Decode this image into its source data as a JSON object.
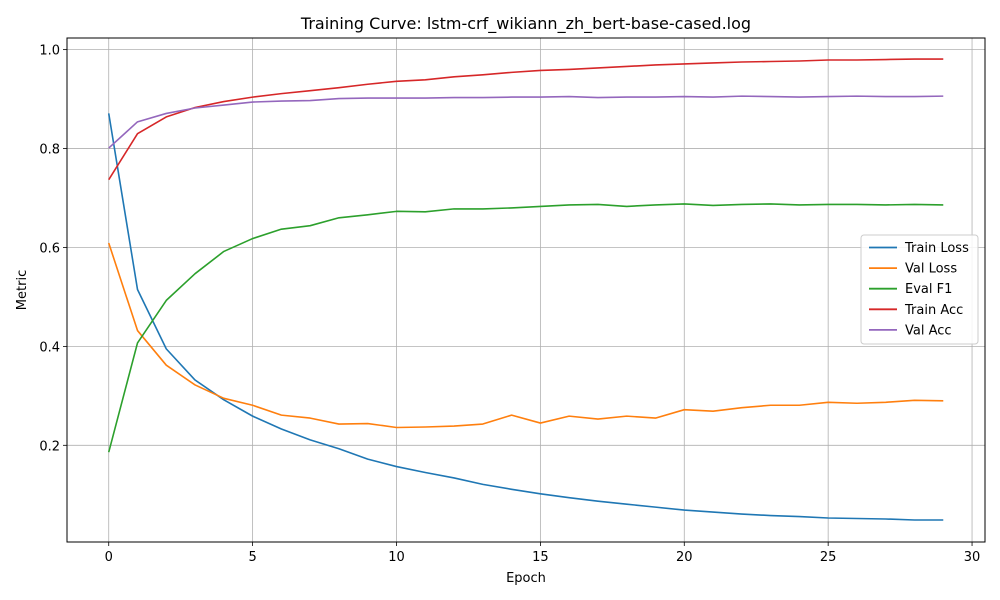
{
  "chart_data": {
    "type": "line",
    "title": "Training Curve: lstm-crf_wikiann_zh_bert-base-cased.log",
    "xlabel": "Epoch",
    "ylabel": "Metric",
    "xlim": [
      -1.45,
      30.45
    ],
    "ylim": [
      0.0045,
      1.0235
    ],
    "xticks": [
      0,
      5,
      10,
      15,
      20,
      25,
      30
    ],
    "xtick_labels": [
      "0",
      "5",
      "10",
      "15",
      "20",
      "25",
      "30"
    ],
    "yticks": [
      0.2,
      0.4,
      0.6,
      0.8,
      1.0
    ],
    "ytick_labels": [
      "0.2",
      "0.4",
      "0.6",
      "0.8",
      "1.0"
    ],
    "grid": true,
    "legend_position": "center-right",
    "x": [
      0,
      1,
      2,
      3,
      4,
      5,
      6,
      7,
      8,
      9,
      10,
      11,
      12,
      13,
      14,
      15,
      16,
      17,
      18,
      19,
      20,
      21,
      22,
      23,
      24,
      25,
      26,
      27,
      28,
      29
    ],
    "series": [
      {
        "name": "Train Loss",
        "color": "#1f77b4",
        "values": [
          0.871,
          0.515,
          0.395,
          0.332,
          0.292,
          0.259,
          0.233,
          0.211,
          0.193,
          0.172,
          0.157,
          0.145,
          0.134,
          0.121,
          0.111,
          0.102,
          0.094,
          0.087,
          0.081,
          0.075,
          0.069,
          0.065,
          0.061,
          0.058,
          0.056,
          0.053,
          0.052,
          0.051,
          0.049,
          0.049
        ]
      },
      {
        "name": "Val Loss",
        "color": "#ff7f0e",
        "values": [
          0.609,
          0.432,
          0.362,
          0.322,
          0.295,
          0.281,
          0.261,
          0.255,
          0.243,
          0.244,
          0.236,
          0.237,
          0.239,
          0.243,
          0.261,
          0.245,
          0.259,
          0.253,
          0.259,
          0.255,
          0.272,
          0.269,
          0.276,
          0.281,
          0.281,
          0.287,
          0.285,
          0.287,
          0.291,
          0.29
        ]
      },
      {
        "name": "Eval F1",
        "color": "#2ca02c",
        "values": [
          0.186,
          0.407,
          0.493,
          0.547,
          0.592,
          0.618,
          0.637,
          0.644,
          0.66,
          0.666,
          0.673,
          0.672,
          0.678,
          0.678,
          0.68,
          0.683,
          0.686,
          0.687,
          0.683,
          0.686,
          0.688,
          0.685,
          0.687,
          0.688,
          0.686,
          0.687,
          0.687,
          0.686,
          0.687,
          0.686
        ]
      },
      {
        "name": "Train Acc",
        "color": "#d62728",
        "values": [
          0.737,
          0.83,
          0.864,
          0.883,
          0.895,
          0.904,
          0.911,
          0.917,
          0.923,
          0.93,
          0.936,
          0.939,
          0.945,
          0.949,
          0.954,
          0.958,
          0.96,
          0.963,
          0.966,
          0.969,
          0.971,
          0.973,
          0.975,
          0.976,
          0.977,
          0.979,
          0.979,
          0.98,
          0.981,
          0.981
        ]
      },
      {
        "name": "Val Acc",
        "color": "#9467bd",
        "values": [
          0.801,
          0.854,
          0.871,
          0.882,
          0.888,
          0.894,
          0.896,
          0.897,
          0.901,
          0.902,
          0.902,
          0.902,
          0.903,
          0.903,
          0.904,
          0.904,
          0.905,
          0.903,
          0.904,
          0.904,
          0.905,
          0.904,
          0.906,
          0.905,
          0.904,
          0.905,
          0.906,
          0.905,
          0.905,
          0.906
        ]
      }
    ]
  }
}
